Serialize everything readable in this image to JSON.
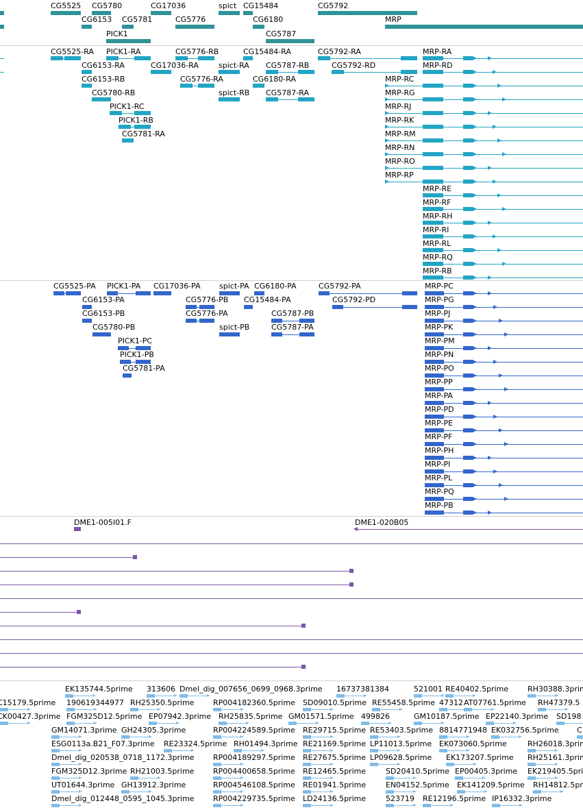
{
  "colors": {
    "gene": "#2e9399",
    "transcript": "#22a5c4",
    "protein": "#3366cc",
    "est": "#7a55a8",
    "read": "#80bce8",
    "separator": "#cfcfcf"
  },
  "gene_track": [
    "CG5525",
    "CG5780",
    "CG17036",
    "spict",
    "CG15484",
    "CG5792",
    "CG6153",
    "CG5781",
    "CG5776",
    "CG6180",
    "MRP",
    "PICK1",
    "CG5787"
  ],
  "transcript_track": [
    "CG5525-RA",
    "PICK1-RA",
    "CG5776-RB",
    "CG15484-RA",
    "CG5792-RA",
    "MRP-RA",
    "CG6153-RA",
    "CG17036-RA",
    "spict-RA",
    "CG5787-RB",
    "CG5792-RD",
    "MRP-RD",
    "CG6153-RB",
    "CG5776-RA",
    "CG6180-RA",
    "MRP-RC",
    "CG5780-RB",
    "spict-RB",
    "CG5787-RA",
    "MRP-RG",
    "PICK1-RC",
    "MRP-RJ",
    "PICK1-RB",
    "MRP-RK",
    "CG5781-RA",
    "MRP-RM",
    "MRP-RN",
    "MRP-RO",
    "MRP-RP",
    "MRP-RE",
    "MRP-RF",
    "MRP-RH",
    "MRP-RI",
    "MRP-RL",
    "MRP-RQ",
    "MRP-RB"
  ],
  "protein_track": [
    "CG5525-PA",
    "PICK1-PA",
    "CG17036-PA",
    "spict-PA",
    "CG6180-PA",
    "CG5792-PA",
    "MRP-PC",
    "CG6153-PA",
    "CG5776-PB",
    "CG15484-PA",
    "CG5792-PD",
    "MRP-PG",
    "CG6153-PB",
    "CG5776-PA",
    "CG5787-PB",
    "MRP-PJ",
    "CG5780-PB",
    "spict-PB",
    "CG5787-PA",
    "MRP-PK",
    "PICK1-PC",
    "MRP-PM",
    "PICK1-PB",
    "MRP-PN",
    "CG5781-PA",
    "MRP-PO",
    "MRP-PP",
    "MRP-PA",
    "MRP-PD",
    "MRP-PE",
    "MRP-PF",
    "MRP-PH",
    "MRP-PI",
    "MRP-PL",
    "MRP-PQ",
    "MRP-PB"
  ],
  "est_track": [
    "DME1-005I01.F",
    "DME1-020B05"
  ],
  "read_track": [
    "EK135744.5prime",
    "313606",
    "Dmel_dig_007656_0699_0968.3prime",
    "16737381384",
    "521001",
    "RE40402.5prime",
    "RH30388.3prime",
    "C15179.5prime",
    "190619344977",
    "RH25350.5prime",
    "RP004182360.5prime",
    "SD09010.5prime",
    "RE55458.5prime",
    "47312",
    "AT07761.5prime",
    "RH47379.5",
    "CK00427.3prime",
    "FGM325D12.5prime",
    "EP07942.3prime",
    "RH25835.5prime",
    "GM01571.5prime",
    "499826",
    "GM10187.5prime",
    "EP22140.3prime",
    "SD198",
    "GM14071.3prime",
    "GH24305.3prime",
    "RP004224589.5prime",
    "RE29715.5prime",
    "RE53403.5prime",
    "8814771948",
    "EK032756.5prime",
    "C",
    "ESG0113a.B21_F07.3prime",
    "RE23324.5prime",
    "RH01494.3prime",
    "RE21169.5prime",
    "LP11013.5prime",
    "EK073060.5prime",
    "RH26018.3prime",
    "Dmel_dig_020538_0718_1172.3prime",
    "RP004189297.5prime",
    "RE27675.5prime",
    "LP09628.5prime",
    "EK173207.5prime",
    "RH25161.3prime",
    "FGM325D12.3prime",
    "RH21003.5prime",
    "RP004400658.5prime",
    "RE12465.5prime",
    "SD20410.5prime",
    "EP00405.3prime",
    "EK219405.5prime",
    "UT01644.3prime",
    "GH13912.3prime",
    "RP004546108.5prime",
    "RE01941.5prime",
    "EN04152.5prime",
    "EK141209.5prime",
    "RH14812.5prime",
    "Dmel_dig_012448_0595_1045.3prime",
    "RP004229735.5prime",
    "LD24136.5prime",
    "523719",
    "RE12196.5prime",
    "IP16332.3prime"
  ]
}
